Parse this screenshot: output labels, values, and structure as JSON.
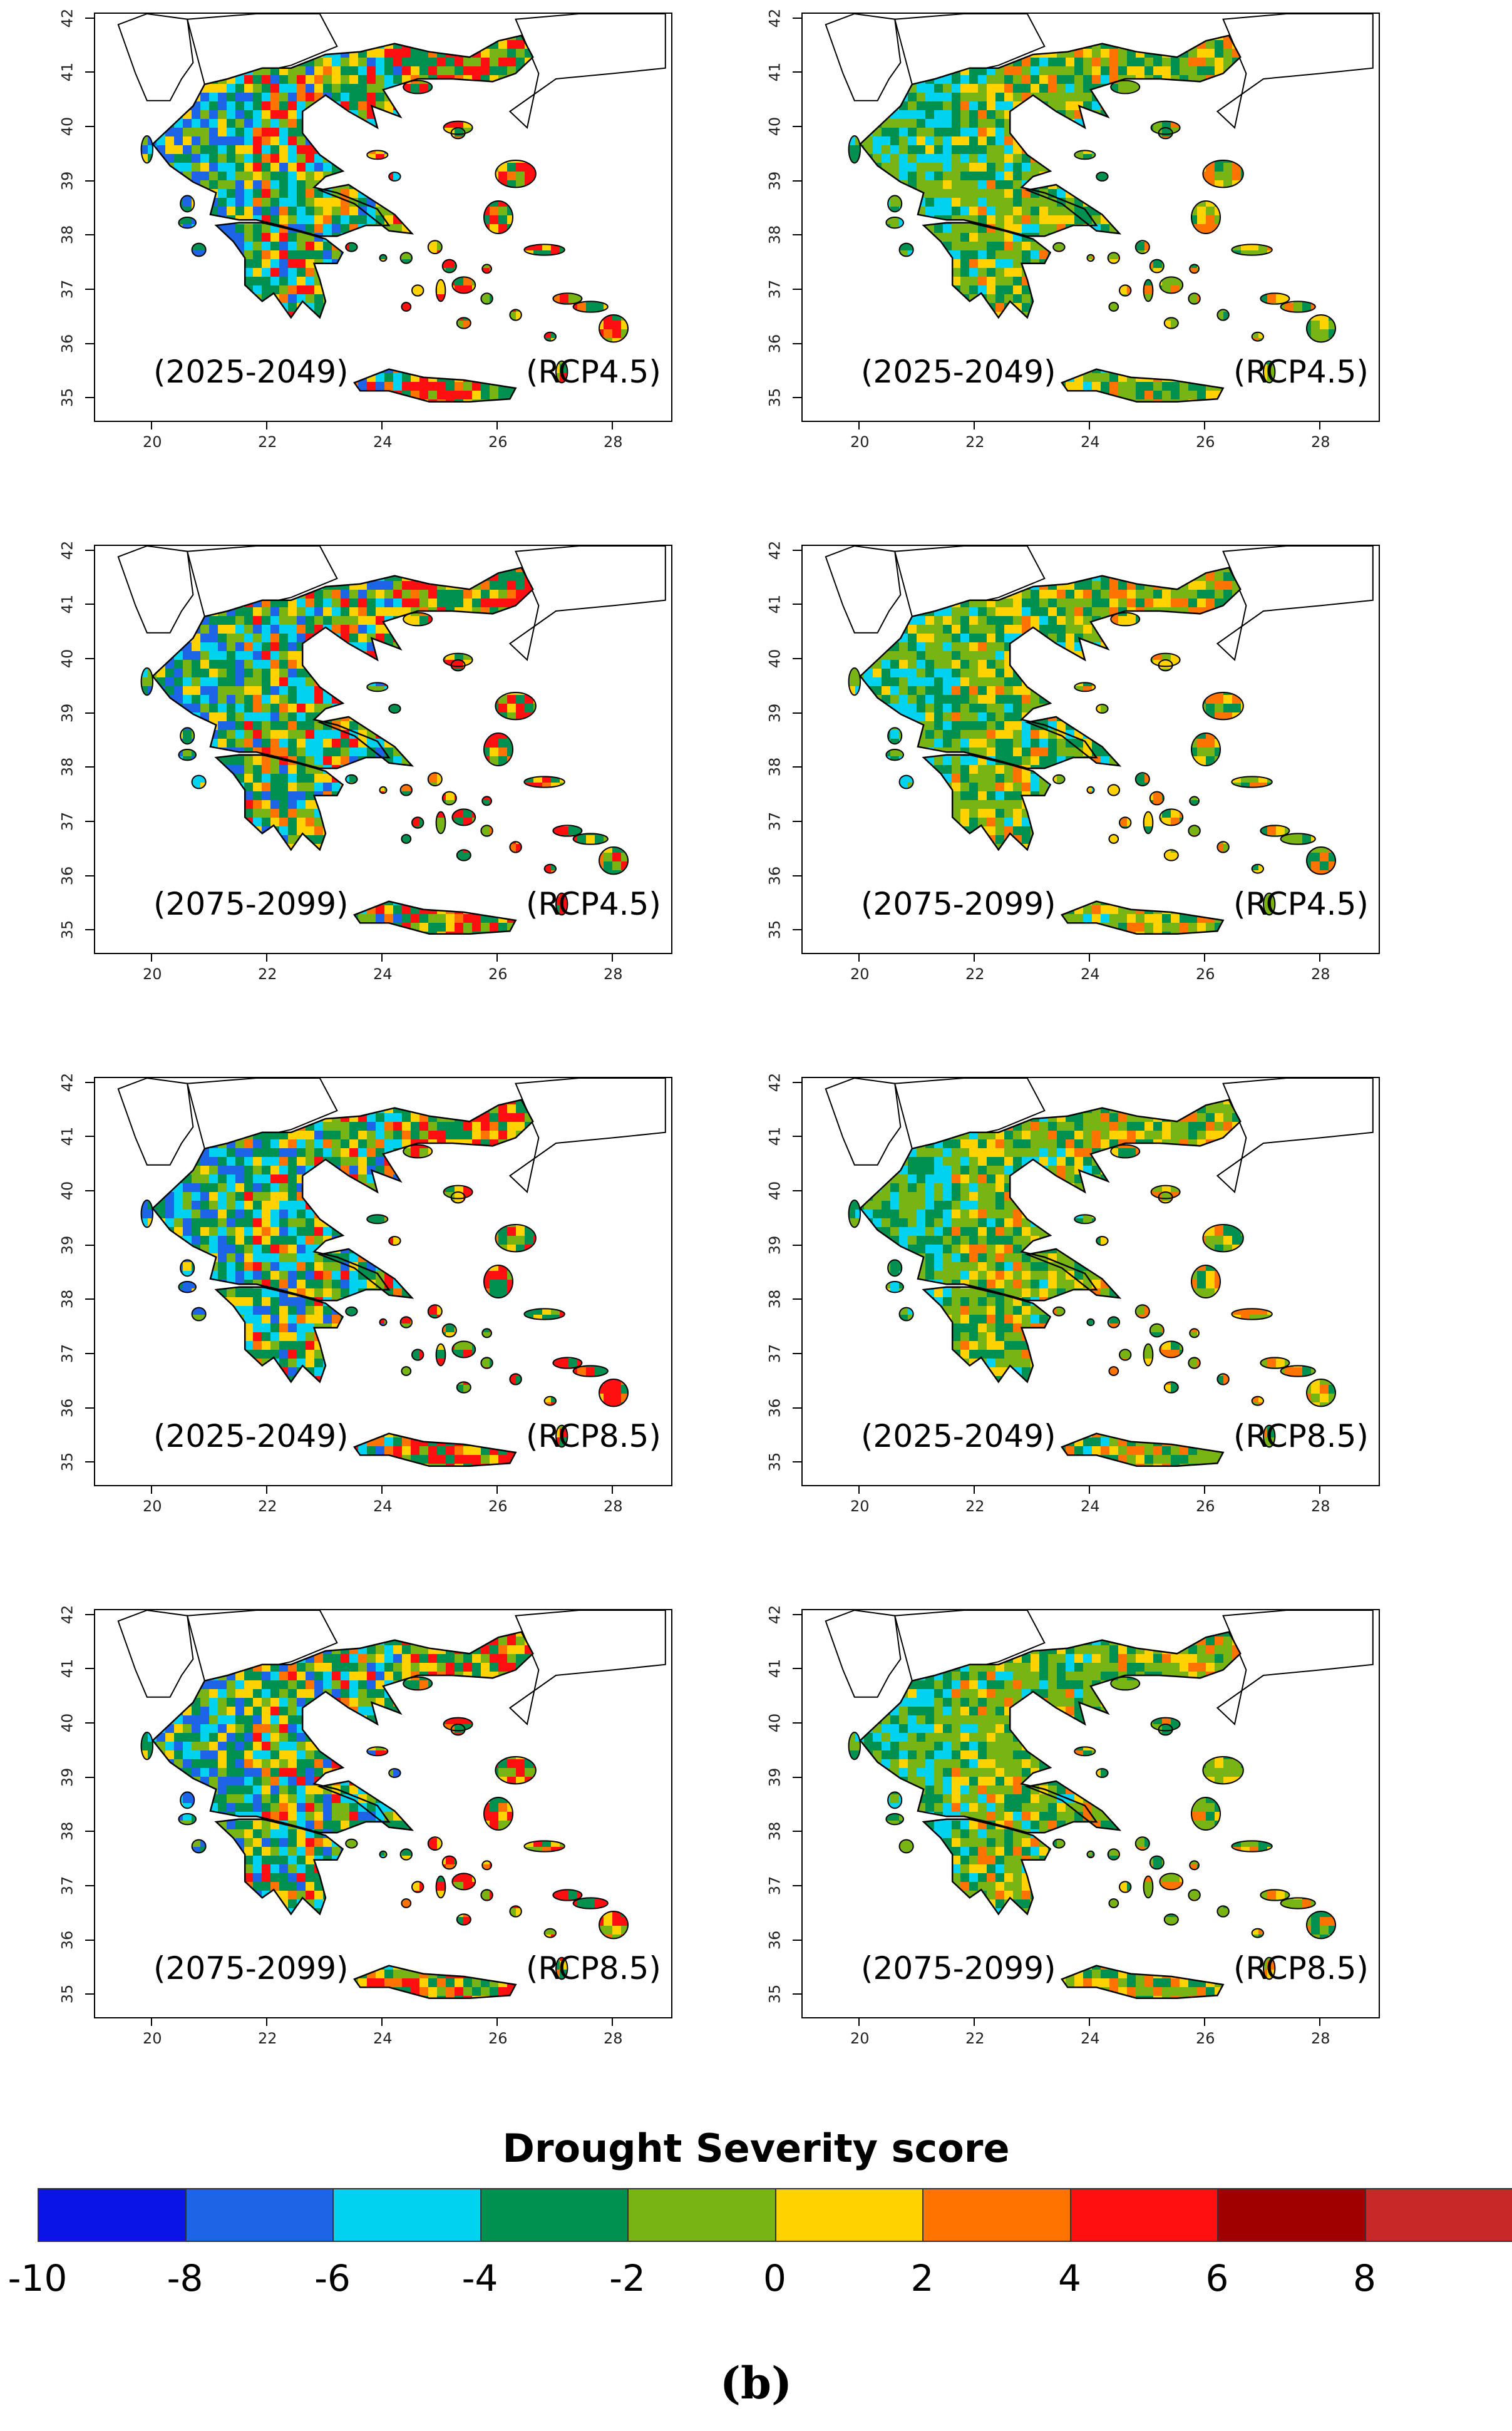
{
  "panels": [
    {
      "period": "(2025-2049)",
      "scenario": "(RCP4.5)",
      "variant": "left"
    },
    {
      "period": "(2025-2049)",
      "scenario": "(RCP4.5)",
      "variant": "right"
    },
    {
      "period": "(2075-2099)",
      "scenario": "(RCP4.5)",
      "variant": "left"
    },
    {
      "period": "(2075-2099)",
      "scenario": "(RCP4.5)",
      "variant": "right"
    },
    {
      "period": "(2025-2049)",
      "scenario": "(RCP8.5)",
      "variant": "left"
    },
    {
      "period": "(2025-2049)",
      "scenario": "(RCP8.5)",
      "variant": "right"
    },
    {
      "period": "(2075-2099)",
      "scenario": "(RCP8.5)",
      "variant": "left"
    },
    {
      "period": "(2075-2099)",
      "scenario": "(RCP8.5)",
      "variant": "right"
    }
  ],
  "axes": {
    "x_ticks": [
      "20",
      "22",
      "24",
      "26",
      "28"
    ],
    "y_ticks": [
      "35",
      "36",
      "37",
      "38",
      "39",
      "40",
      "41",
      "42"
    ],
    "x_range": [
      19,
      29
    ],
    "y_range": [
      34.6,
      42.1
    ]
  },
  "legend": {
    "title": "Drought Severity score",
    "ticks": [
      "-10",
      "-8",
      "-6",
      "-4",
      "-2",
      "0",
      "2",
      "4",
      "6",
      "8"
    ],
    "colors": [
      "#0a14e6",
      "#1e64e6",
      "#00d2f0",
      "#009150",
      "#78b414",
      "#ffd200",
      "#ff7300",
      "#ff0f0f",
      "#a00000",
      "#c82828"
    ]
  },
  "caption": "(b)"
}
